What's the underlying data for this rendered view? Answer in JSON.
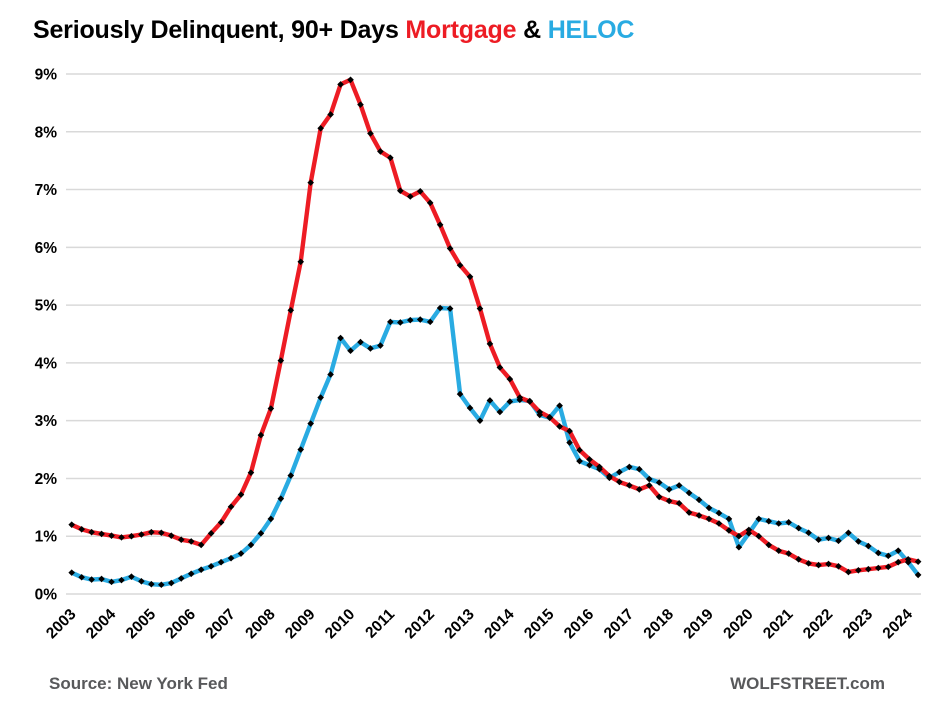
{
  "title": {
    "prefix": "Seriously Delinquent, 90+ Days ",
    "mortgage": "Mortgage",
    "amp": " & ",
    "heloc": "HELOC"
  },
  "footer": {
    "source": "Source: New York Fed",
    "brand": "WOLFSTREET.com"
  },
  "colors": {
    "mortgage": "#ED1C24",
    "heloc": "#29ABE2",
    "marker": "#000000",
    "gridline": "#D9D9D9",
    "axis_text": "#000000",
    "footer_text": "#58595B",
    "background": "#FFFFFF"
  },
  "chart_data": {
    "type": "line",
    "title": "Seriously Delinquent, 90+ Days Mortgage & HELOC",
    "xlabel": "",
    "ylabel": "",
    "ylim": [
      0,
      9
    ],
    "grid": "horizontal",
    "legend_position": "in-title",
    "marker": "diamond",
    "y_tick_labels": [
      "0%",
      "1%",
      "2%",
      "3%",
      "4%",
      "5%",
      "6%",
      "7%",
      "8%",
      "9%"
    ],
    "x_tick_labels": [
      "2003",
      "2004",
      "2005",
      "2006",
      "2007",
      "2008",
      "2009",
      "2010",
      "2011",
      "2012",
      "2013",
      "2014",
      "2015",
      "2016",
      "2017",
      "2018",
      "2019",
      "2020",
      "2021",
      "2022",
      "2023",
      "2024"
    ],
    "x": [
      "2003Q1",
      "2003Q2",
      "2003Q3",
      "2003Q4",
      "2004Q1",
      "2004Q2",
      "2004Q3",
      "2004Q4",
      "2005Q1",
      "2005Q2",
      "2005Q3",
      "2005Q4",
      "2006Q1",
      "2006Q2",
      "2006Q3",
      "2006Q4",
      "2007Q1",
      "2007Q2",
      "2007Q3",
      "2007Q4",
      "2008Q1",
      "2008Q2",
      "2008Q3",
      "2008Q4",
      "2009Q1",
      "2009Q2",
      "2009Q3",
      "2009Q4",
      "2010Q1",
      "2010Q2",
      "2010Q3",
      "2010Q4",
      "2011Q1",
      "2011Q2",
      "2011Q3",
      "2011Q4",
      "2012Q1",
      "2012Q2",
      "2012Q3",
      "2012Q4",
      "2013Q1",
      "2013Q2",
      "2013Q3",
      "2013Q4",
      "2014Q1",
      "2014Q2",
      "2014Q3",
      "2014Q4",
      "2015Q1",
      "2015Q2",
      "2015Q3",
      "2015Q4",
      "2016Q1",
      "2016Q2",
      "2016Q3",
      "2016Q4",
      "2017Q1",
      "2017Q2",
      "2017Q3",
      "2017Q4",
      "2018Q1",
      "2018Q2",
      "2018Q3",
      "2018Q4",
      "2019Q1",
      "2019Q2",
      "2019Q3",
      "2019Q4",
      "2020Q1",
      "2020Q2",
      "2020Q3",
      "2020Q4",
      "2021Q1",
      "2021Q2",
      "2021Q3",
      "2021Q4",
      "2022Q1",
      "2022Q2",
      "2022Q3",
      "2022Q4",
      "2023Q1",
      "2023Q2",
      "2023Q3",
      "2023Q4",
      "2024Q1",
      "2024Q2"
    ],
    "series": [
      {
        "name": "Mortgage",
        "color": "#ED1C24",
        "values": [
          1.2,
          1.12,
          1.07,
          1.04,
          1.01,
          0.98,
          1.0,
          1.03,
          1.07,
          1.06,
          1.01,
          0.94,
          0.91,
          0.85,
          1.05,
          1.24,
          1.51,
          1.72,
          2.1,
          2.75,
          3.21,
          4.04,
          4.91,
          5.75,
          7.12,
          8.06,
          8.3,
          8.82,
          8.9,
          8.47,
          7.97,
          7.66,
          7.55,
          6.98,
          6.88,
          6.97,
          6.77,
          6.39,
          5.98,
          5.69,
          5.49,
          4.94,
          4.33,
          3.92,
          3.72,
          3.4,
          3.33,
          3.15,
          3.06,
          2.9,
          2.82,
          2.49,
          2.33,
          2.2,
          2.04,
          1.94,
          1.88,
          1.81,
          1.88,
          1.68,
          1.61,
          1.57,
          1.41,
          1.36,
          1.3,
          1.22,
          1.1,
          1.0,
          1.11,
          1.0,
          0.85,
          0.75,
          0.7,
          0.6,
          0.53,
          0.5,
          0.52,
          0.48,
          0.38,
          0.41,
          0.43,
          0.45,
          0.47,
          0.55,
          0.6,
          0.56
        ]
      },
      {
        "name": "HELOC",
        "color": "#29ABE2",
        "values": [
          0.37,
          0.29,
          0.25,
          0.26,
          0.21,
          0.24,
          0.3,
          0.22,
          0.17,
          0.16,
          0.19,
          0.27,
          0.35,
          0.42,
          0.48,
          0.55,
          0.62,
          0.7,
          0.85,
          1.05,
          1.3,
          1.65,
          2.05,
          2.5,
          2.95,
          3.4,
          3.8,
          4.43,
          4.21,
          4.36,
          4.25,
          4.3,
          4.71,
          4.7,
          4.74,
          4.75,
          4.71,
          4.95,
          4.94,
          3.46,
          3.22,
          3.0,
          3.35,
          3.15,
          3.33,
          3.36,
          3.34,
          3.1,
          3.05,
          3.26,
          2.62,
          2.3,
          2.23,
          2.16,
          2.01,
          2.11,
          2.2,
          2.16,
          1.99,
          1.93,
          1.81,
          1.88,
          1.75,
          1.63,
          1.49,
          1.4,
          1.3,
          0.81,
          1.05,
          1.3,
          1.26,
          1.22,
          1.24,
          1.14,
          1.06,
          0.94,
          0.97,
          0.92,
          1.06,
          0.91,
          0.83,
          0.71,
          0.66,
          0.75,
          0.55,
          0.33
        ]
      }
    ]
  }
}
